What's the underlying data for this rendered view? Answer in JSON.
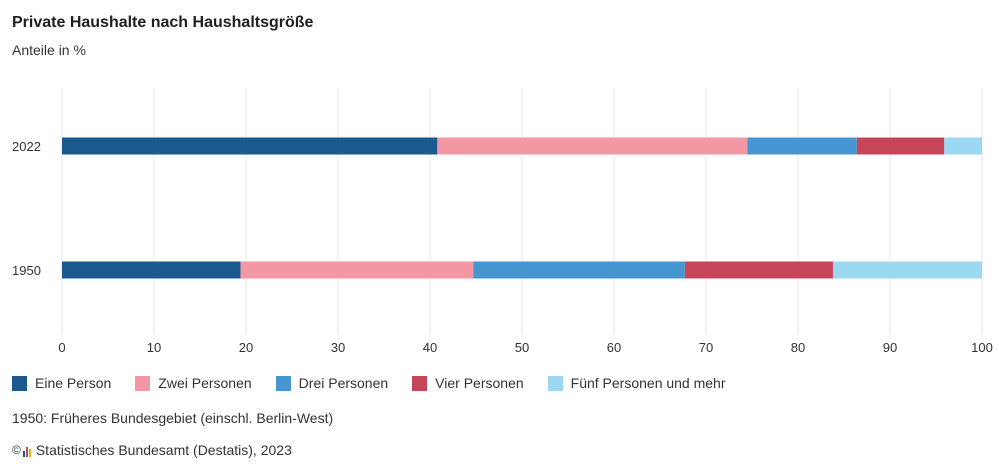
{
  "chart_data": {
    "type": "bar",
    "orientation": "horizontal",
    "stacked": true,
    "title": "Private Haushalte nach Haushaltsgröße",
    "subtitle": "Anteile in %",
    "categories": [
      "2022",
      "1950"
    ],
    "series": [
      {
        "name": "Eine Person",
        "color": "#1b5a8e",
        "values": [
          40.8,
          19.4
        ]
      },
      {
        "name": "Zwei Personen",
        "color": "#f297a3",
        "values": [
          33.7,
          25.3
        ]
      },
      {
        "name": "Drei Personen",
        "color": "#4696d2",
        "values": [
          11.9,
          23.0
        ]
      },
      {
        "name": "Vier Personen",
        "color": "#c64558",
        "values": [
          9.5,
          16.1
        ]
      },
      {
        "name": "Fünf Personen und mehr",
        "color": "#9dd8f3",
        "values": [
          4.1,
          16.2
        ]
      }
    ],
    "xlim": [
      0,
      100
    ],
    "xticks": [
      "0",
      "10",
      "20",
      "30",
      "40",
      "50",
      "60",
      "70",
      "80",
      "90",
      "100"
    ],
    "grid": true,
    "legend_position": "bottom"
  },
  "footnote": "1950: Früheres Bundesgebiet (einschl. Berlin-West)",
  "source": "Statistisches Bundesamt (Destatis), 2023",
  "copyright_symbol": "©"
}
